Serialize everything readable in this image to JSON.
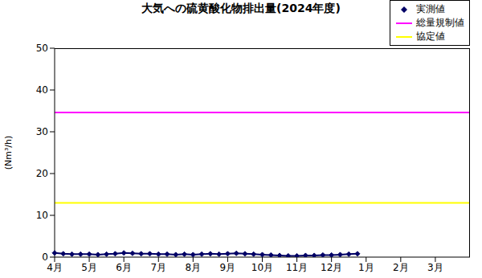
{
  "chart_data": {
    "type": "line",
    "title": "大気への硫黄酸化物排出量(2024年度)",
    "y_label": "(Nm³/h)",
    "categories": [
      "4月",
      null,
      null,
      null,
      "5月",
      null,
      null,
      null,
      "6月",
      null,
      null,
      null,
      "7月",
      null,
      null,
      null,
      "8月",
      null,
      null,
      null,
      "9月",
      null,
      null,
      null,
      "10月",
      null,
      null,
      null,
      "11月",
      null,
      null,
      null,
      "12月",
      null,
      null,
      null,
      "1月",
      null,
      null,
      null,
      "2月",
      null,
      null,
      null,
      "3月",
      null,
      null,
      null,
      null
    ],
    "series": [
      {
        "name": "実測値",
        "color": "#000066",
        "marker": "diamond",
        "line_style": "solid",
        "values": [
          1.0,
          0.8,
          0.7,
          0.7,
          0.7,
          0.6,
          0.7,
          0.8,
          1.0,
          0.9,
          0.8,
          0.8,
          0.7,
          0.7,
          0.6,
          0.7,
          0.6,
          0.7,
          0.8,
          0.7,
          0.8,
          0.9,
          0.8,
          0.7,
          0.6,
          0.5,
          0.4,
          0.3,
          0.3,
          0.4,
          0.4,
          0.5,
          0.5,
          0.6,
          0.7,
          0.8,
          null,
          null,
          null,
          null,
          null,
          null,
          null,
          null,
          null,
          null,
          null,
          null,
          null
        ]
      },
      {
        "name": "総量規制値",
        "color": "#ff00ff",
        "line_style": "solid",
        "values": [
          34.6,
          34.6,
          34.6,
          34.6,
          34.6,
          34.6,
          34.6,
          34.6,
          34.6,
          34.6,
          34.6,
          34.6,
          34.6,
          34.6,
          34.6,
          34.6,
          34.6,
          34.6,
          34.6,
          34.6,
          34.6,
          34.6,
          34.6,
          34.6,
          34.6,
          34.6,
          34.6,
          34.6,
          34.6,
          34.6,
          34.6,
          34.6,
          34.6,
          34.6,
          34.6,
          34.6,
          34.6,
          34.6,
          34.6,
          34.6,
          34.6,
          34.6,
          34.6,
          34.6,
          34.6,
          34.6,
          34.6,
          34.6,
          34.6
        ]
      },
      {
        "name": "協定値",
        "color": "#ffff00",
        "line_style": "solid",
        "values": [
          13,
          13,
          13,
          13,
          13,
          13,
          13,
          13,
          13,
          13,
          13,
          13,
          13,
          13,
          13,
          13,
          13,
          13,
          13,
          13,
          13,
          13,
          13,
          13,
          13,
          13,
          13,
          13,
          13,
          13,
          13,
          13,
          13,
          13,
          13,
          13,
          13,
          13,
          13,
          13,
          13,
          13,
          13,
          13,
          13,
          13,
          13,
          13,
          13
        ]
      }
    ],
    "ylim": [
      0,
      50
    ],
    "yticks": [
      0,
      10,
      20,
      30,
      40,
      50
    ],
    "grid": false,
    "legend": "top-right"
  }
}
